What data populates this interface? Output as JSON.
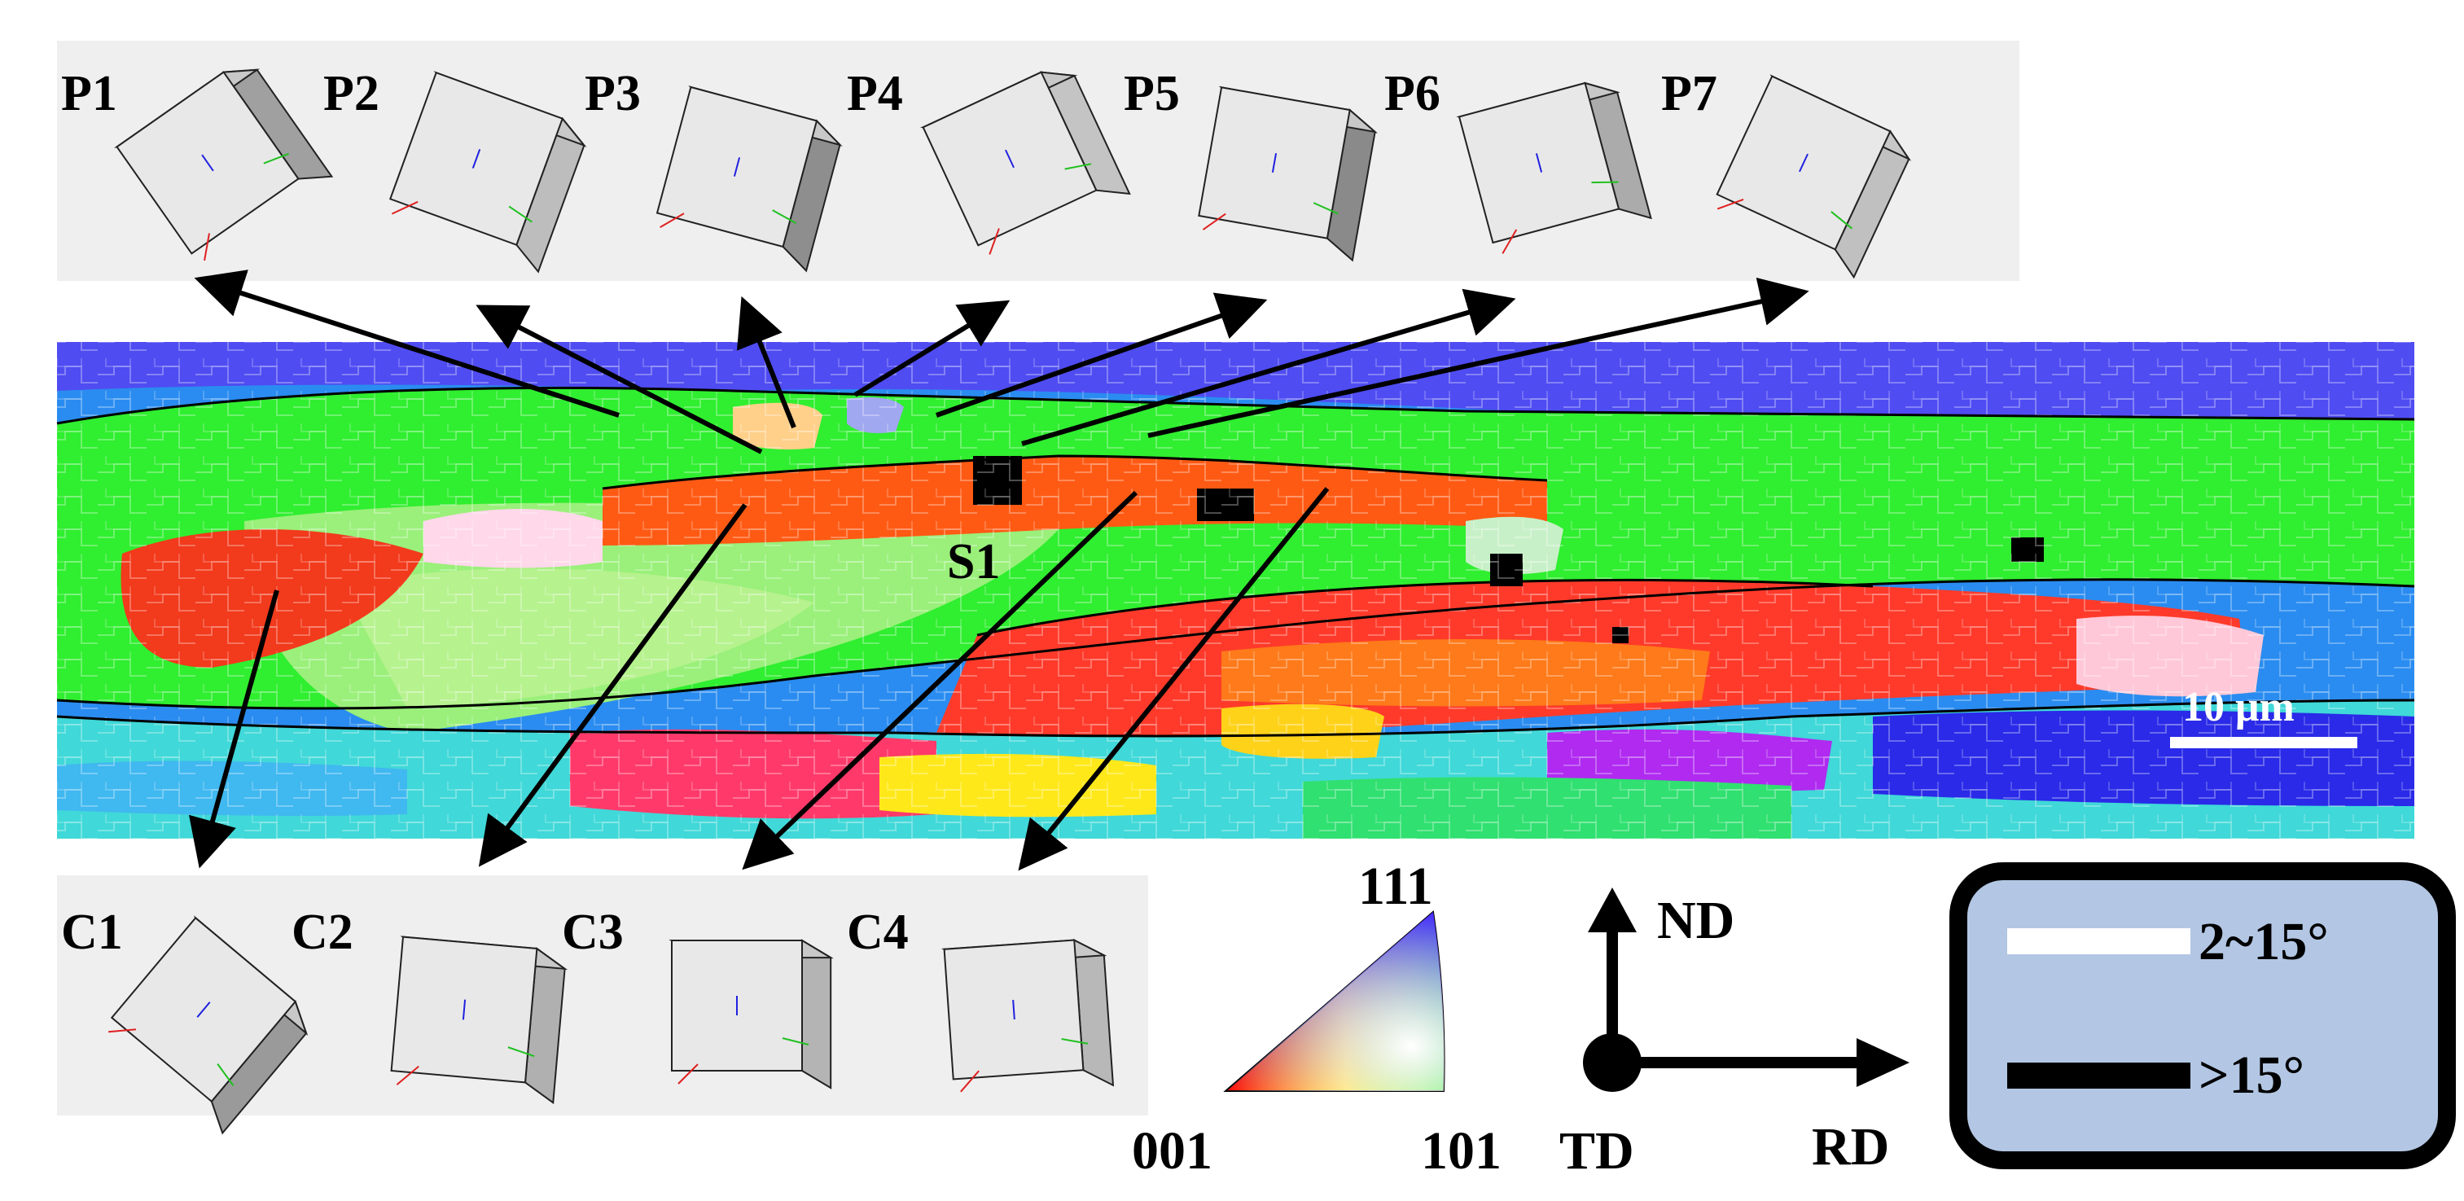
{
  "cube_labels_top": [
    "P1",
    "P2",
    "P3",
    "P4",
    "P5",
    "P6",
    "P7"
  ],
  "cube_labels_bottom": [
    "C1",
    "C2",
    "C3",
    "C4"
  ],
  "map_marker": "S1",
  "scale_bar": {
    "label": "10 μm"
  },
  "ipf_key": {
    "corner_top": "111",
    "corner_left": "001",
    "corner_right": "101"
  },
  "axes": {
    "up": "ND",
    "right": "RD",
    "out": "TD"
  },
  "legend": {
    "items": [
      {
        "label": "2~15°",
        "color": "#ffffff"
      },
      {
        "label": ">15°",
        "color": "#000000"
      }
    ],
    "background": "#b3c7e4"
  },
  "colors": {
    "panel_bg": "#efefef",
    "ipf_red": "#ff2a1a",
    "ipf_green": "#22f022",
    "ipf_blue": "#2a2aff",
    "axis_red": "#e02020",
    "axis_green": "#20c020",
    "axis_blue": "#2020e0"
  }
}
